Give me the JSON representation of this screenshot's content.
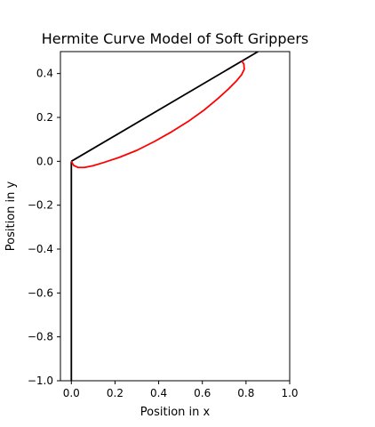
{
  "chart_data": {
    "type": "line",
    "title": "Hermite Curve Model of Soft Grippers",
    "xlabel": "Position in x",
    "ylabel": "Position in y",
    "xlim": [
      -0.05,
      1.0
    ],
    "ylim": [
      -1.0,
      0.5
    ],
    "xticks": [
      {
        "value": 0.0,
        "label": "0.0"
      },
      {
        "value": 0.2,
        "label": "0.2"
      },
      {
        "value": 0.4,
        "label": "0.4"
      },
      {
        "value": 0.6,
        "label": "0.6"
      },
      {
        "value": 0.8,
        "label": "0.8"
      },
      {
        "value": 1.0,
        "label": "1.0"
      }
    ],
    "yticks": [
      {
        "value": -1.0,
        "label": "−1.0"
      },
      {
        "value": -0.8,
        "label": "−0.8"
      },
      {
        "value": -0.6,
        "label": "−0.6"
      },
      {
        "value": -0.4,
        "label": "−0.4"
      },
      {
        "value": -0.2,
        "label": "−0.2"
      },
      {
        "value": 0.0,
        "label": "0.0"
      },
      {
        "value": 0.2,
        "label": "0.2"
      },
      {
        "value": 0.4,
        "label": "0.4"
      }
    ],
    "grid": false,
    "series": [
      {
        "color": "#000000",
        "x": [
          0.0,
          0.0
        ],
        "y": [
          -1.0,
          0.0
        ]
      },
      {
        "color": "#000000",
        "x": [
          0.0,
          0.855
        ],
        "y": [
          0.0,
          0.5
        ]
      },
      {
        "color": "#ff0000",
        "x": [
          0.0,
          0.01,
          0.03,
          0.06,
          0.1,
          0.15,
          0.22,
          0.3,
          0.38,
          0.46,
          0.54,
          0.61,
          0.67,
          0.72,
          0.755,
          0.78,
          0.792,
          0.79,
          0.78
        ],
        "y": [
          0.0,
          -0.018,
          -0.028,
          -0.028,
          -0.02,
          -0.005,
          0.018,
          0.05,
          0.09,
          0.135,
          0.185,
          0.235,
          0.285,
          0.33,
          0.365,
          0.395,
          0.42,
          0.443,
          0.458
        ]
      }
    ]
  }
}
